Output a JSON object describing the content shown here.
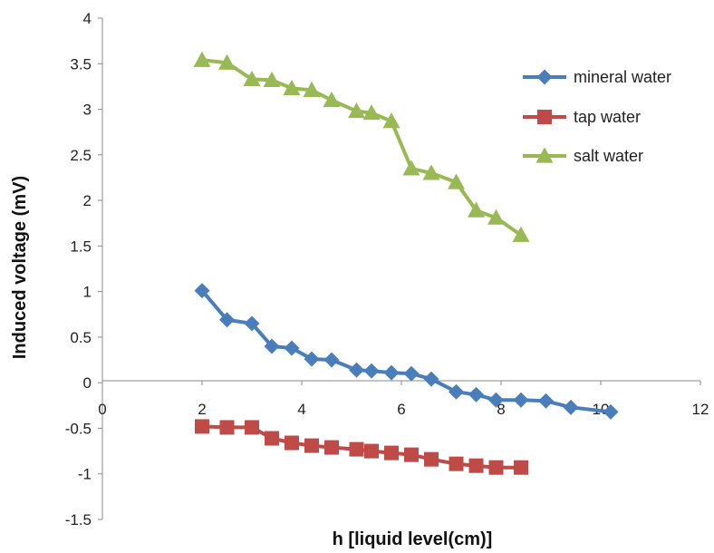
{
  "chart_data": {
    "type": "line",
    "xlabel": "h [liquid level(cm)]",
    "ylabel": "Induced voltage (mV)",
    "xlim": [
      0,
      12
    ],
    "ylim": [
      -1.5,
      4
    ],
    "xticks": [
      "0",
      "2",
      "4",
      "6",
      "8",
      "10",
      "12"
    ],
    "yticks": [
      "-1.5",
      "-1",
      "-0.5",
      "0",
      "0.5",
      "1",
      "1.5",
      "2",
      "2.5",
      "3",
      "3.5",
      "4"
    ],
    "grid": false,
    "legend_position": "right",
    "series": [
      {
        "name": "mineral water",
        "color": "#4a7ebb",
        "marker": "diamond",
        "points": [
          [
            2.0,
            1.01
          ],
          [
            2.5,
            0.69
          ],
          [
            3.0,
            0.65
          ],
          [
            3.4,
            0.4
          ],
          [
            3.8,
            0.38
          ],
          [
            4.2,
            0.26
          ],
          [
            4.6,
            0.25
          ],
          [
            5.1,
            0.14
          ],
          [
            5.4,
            0.13
          ],
          [
            5.8,
            0.11
          ],
          [
            6.2,
            0.1
          ],
          [
            6.6,
            0.04
          ],
          [
            7.1,
            -0.1
          ],
          [
            7.5,
            -0.13
          ],
          [
            7.9,
            -0.19
          ],
          [
            8.4,
            -0.19
          ],
          [
            8.9,
            -0.2
          ],
          [
            9.4,
            -0.27
          ],
          [
            10.2,
            -0.32
          ]
        ]
      },
      {
        "name": "tap water",
        "color": "#be4b48",
        "marker": "square",
        "points": [
          [
            2.0,
            -0.48
          ],
          [
            2.5,
            -0.49
          ],
          [
            3.0,
            -0.49
          ],
          [
            3.4,
            -0.61
          ],
          [
            3.8,
            -0.66
          ],
          [
            4.2,
            -0.69
          ],
          [
            4.6,
            -0.71
          ],
          [
            5.1,
            -0.73
          ],
          [
            5.4,
            -0.75
          ],
          [
            5.8,
            -0.77
          ],
          [
            6.2,
            -0.79
          ],
          [
            6.6,
            -0.84
          ],
          [
            7.1,
            -0.89
          ],
          [
            7.5,
            -0.91
          ],
          [
            7.9,
            -0.93
          ],
          [
            8.4,
            -0.93
          ]
        ]
      },
      {
        "name": "salt water",
        "color": "#98b954",
        "marker": "triangle",
        "points": [
          [
            2.0,
            3.54
          ],
          [
            2.5,
            3.51
          ],
          [
            3.0,
            3.33
          ],
          [
            3.4,
            3.32
          ],
          [
            3.8,
            3.23
          ],
          [
            4.2,
            3.21
          ],
          [
            4.6,
            3.1
          ],
          [
            5.1,
            2.98
          ],
          [
            5.4,
            2.96
          ],
          [
            5.8,
            2.87
          ],
          [
            6.2,
            2.35
          ],
          [
            6.6,
            2.3
          ],
          [
            7.1,
            2.2
          ],
          [
            7.5,
            1.89
          ],
          [
            7.9,
            1.81
          ],
          [
            8.4,
            1.62
          ]
        ]
      }
    ]
  }
}
